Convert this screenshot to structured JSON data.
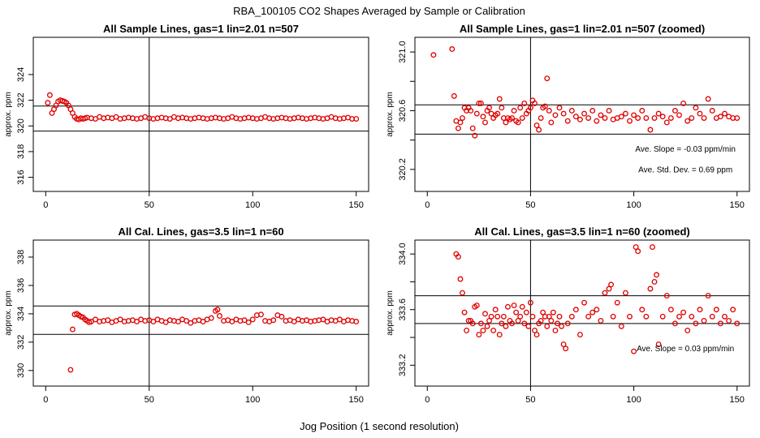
{
  "figure": {
    "title": "RBA_100105  CO2 Shapes Averaged by Sample or Calibration",
    "xlabel": "Jog Position (1 second resolution)"
  },
  "colors": {
    "points": "#e00000",
    "axes": "#000000",
    "background": "#ffffff"
  },
  "chart_data": [
    {
      "type": "scatter",
      "title": "All Sample Lines, gas=1 lin=2.01 n=507",
      "xlabel": "",
      "ylabel": "approx. ppm",
      "xlim": [
        -6,
        156
      ],
      "ylim": [
        314.9,
        326.9
      ],
      "xticks": [
        0,
        50,
        100,
        150
      ],
      "yticks": [
        316,
        318,
        320,
        322,
        324
      ],
      "xtick_labels": [
        "0",
        "50",
        "100",
        "150"
      ],
      "ytick_labels": [
        "316",
        "318",
        "320",
        "322",
        "324"
      ],
      "hlines": [
        321.55,
        319.6
      ],
      "vlines": [
        50
      ],
      "annotations": [],
      "x": [
        1,
        2,
        3,
        4,
        5,
        6,
        7,
        8,
        9,
        10,
        11,
        12,
        13,
        14,
        15,
        16,
        17,
        18,
        19,
        20,
        22,
        24,
        26,
        28,
        30,
        32,
        34,
        36,
        38,
        40,
        42,
        44,
        46,
        48,
        50,
        52,
        54,
        56,
        58,
        60,
        62,
        64,
        66,
        68,
        70,
        72,
        74,
        76,
        78,
        80,
        82,
        84,
        86,
        88,
        90,
        92,
        94,
        96,
        98,
        100,
        102,
        104,
        106,
        108,
        110,
        112,
        114,
        116,
        118,
        120,
        122,
        124,
        126,
        128,
        130,
        132,
        134,
        136,
        138,
        140,
        142,
        144,
        146,
        148,
        150
      ],
      "y": [
        321.8,
        322.4,
        321.0,
        321.3,
        321.6,
        321.9,
        322.0,
        321.95,
        321.9,
        321.8,
        321.6,
        321.3,
        321.0,
        320.7,
        320.55,
        320.5,
        320.6,
        320.55,
        320.6,
        320.65,
        320.6,
        320.55,
        320.7,
        320.6,
        320.65,
        320.6,
        320.7,
        320.55,
        320.6,
        320.65,
        320.6,
        320.55,
        320.6,
        320.7,
        320.6,
        320.55,
        320.6,
        320.65,
        320.6,
        320.55,
        320.7,
        320.6,
        320.65,
        320.6,
        320.55,
        320.6,
        320.65,
        320.6,
        320.55,
        320.6,
        320.65,
        320.6,
        320.55,
        320.6,
        320.7,
        320.6,
        320.55,
        320.6,
        320.65,
        320.6,
        320.55,
        320.6,
        320.7,
        320.6,
        320.55,
        320.6,
        320.65,
        320.6,
        320.55,
        320.6,
        320.65,
        320.6,
        320.55,
        320.6,
        320.65,
        320.6,
        320.55,
        320.6,
        320.7,
        320.6,
        320.55,
        320.6,
        320.65,
        320.55,
        320.55
      ]
    },
    {
      "type": "scatter",
      "title": "All Sample Lines, gas=1 lin=2.01 n=507 (zoomed)",
      "xlabel": "",
      "ylabel": "approx. ppm",
      "xlim": [
        -6,
        156
      ],
      "ylim": [
        320.05,
        321.1
      ],
      "xticks": [
        0,
        50,
        100,
        150
      ],
      "yticks": [
        320.2,
        320.4,
        320.6,
        320.8,
        321.0
      ],
      "xtick_labels": [
        "0",
        "50",
        "100",
        "150"
      ],
      "ytick_labels": [
        "320.2",
        "",
        "320.6",
        "",
        "321.0"
      ],
      "hlines": [
        320.64,
        320.44
      ],
      "vlines": [
        50
      ],
      "annotations": [
        "Ave. Slope =  -0.03  ppm/min",
        "Ave. Std. Dev. =  0.69  ppm"
      ],
      "x": [
        3,
        12,
        13,
        14,
        15,
        16,
        17,
        18,
        19,
        20,
        21,
        22,
        23,
        24,
        25,
        26,
        27,
        28,
        29,
        30,
        31,
        32,
        33,
        34,
        35,
        36,
        37,
        38,
        39,
        40,
        41,
        42,
        43,
        44,
        45,
        46,
        47,
        48,
        49,
        50,
        51,
        52,
        53,
        54,
        55,
        56,
        57,
        58,
        59,
        60,
        62,
        64,
        66,
        68,
        70,
        72,
        74,
        76,
        78,
        80,
        82,
        84,
        86,
        88,
        90,
        92,
        94,
        96,
        98,
        100,
        102,
        104,
        106,
        108,
        110,
        112,
        114,
        116,
        118,
        120,
        122,
        124,
        126,
        128,
        130,
        132,
        134,
        136,
        138,
        140,
        142,
        144,
        146,
        148,
        150
      ],
      "y": [
        320.98,
        321.02,
        320.7,
        320.53,
        320.48,
        320.52,
        320.55,
        320.62,
        320.6,
        320.62,
        320.6,
        320.48,
        320.43,
        320.58,
        320.65,
        320.65,
        320.56,
        320.52,
        320.6,
        320.62,
        320.58,
        320.55,
        320.57,
        320.58,
        320.68,
        320.62,
        320.55,
        320.52,
        320.55,
        320.54,
        320.55,
        320.6,
        320.53,
        320.52,
        320.62,
        320.55,
        320.65,
        320.58,
        320.6,
        320.62,
        320.67,
        320.65,
        320.5,
        320.47,
        320.55,
        320.62,
        320.63,
        320.82,
        320.6,
        320.52,
        320.57,
        320.62,
        320.58,
        320.53,
        320.6,
        320.56,
        320.54,
        320.58,
        320.55,
        320.6,
        320.53,
        320.57,
        320.55,
        320.6,
        320.54,
        320.55,
        320.56,
        320.58,
        320.53,
        320.57,
        320.55,
        320.6,
        320.55,
        320.47,
        320.55,
        320.58,
        320.56,
        320.52,
        320.55,
        320.6,
        320.57,
        320.65,
        320.53,
        320.55,
        320.62,
        320.58,
        320.55,
        320.68,
        320.6,
        320.55,
        320.56,
        320.58,
        320.56,
        320.55,
        320.55
      ]
    },
    {
      "type": "scatter",
      "title": "All Cal. Lines, gas=3.5 lin=1 n=60",
      "xlabel": "",
      "ylabel": "approx. ppm",
      "xlim": [
        -6,
        156
      ],
      "ylim": [
        328.9,
        339.2
      ],
      "xticks": [
        0,
        50,
        100,
        150
      ],
      "yticks": [
        330,
        332,
        334,
        336,
        338
      ],
      "xtick_labels": [
        "0",
        "50",
        "100",
        "150"
      ],
      "ytick_labels": [
        "330",
        "332",
        "334",
        "336",
        "338"
      ],
      "hlines": [
        334.55,
        332.55
      ],
      "vlines": [
        50
      ],
      "annotations": [],
      "x": [
        12,
        13,
        14,
        15,
        16,
        17,
        18,
        19,
        20,
        21,
        22,
        24,
        26,
        28,
        30,
        32,
        34,
        36,
        38,
        40,
        42,
        44,
        46,
        48,
        50,
        52,
        54,
        56,
        58,
        60,
        62,
        64,
        66,
        68,
        70,
        72,
        74,
        76,
        78,
        80,
        82,
        83,
        84,
        86,
        88,
        90,
        92,
        94,
        96,
        98,
        100,
        102,
        104,
        106,
        108,
        110,
        112,
        114,
        116,
        118,
        120,
        122,
        124,
        126,
        128,
        130,
        132,
        134,
        136,
        138,
        140,
        142,
        144,
        146,
        148,
        150
      ],
      "y": [
        330.05,
        332.9,
        333.95,
        334.0,
        333.9,
        333.8,
        333.75,
        333.6,
        333.5,
        333.4,
        333.45,
        333.6,
        333.45,
        333.5,
        333.55,
        333.4,
        333.5,
        333.6,
        333.45,
        333.5,
        333.55,
        333.45,
        333.6,
        333.5,
        333.55,
        333.45,
        333.6,
        333.5,
        333.4,
        333.55,
        333.5,
        333.45,
        333.6,
        333.5,
        333.35,
        333.5,
        333.55,
        333.45,
        333.6,
        333.7,
        334.2,
        334.3,
        333.85,
        333.5,
        333.55,
        333.45,
        333.6,
        333.5,
        333.55,
        333.4,
        333.6,
        333.9,
        333.95,
        333.5,
        333.45,
        333.55,
        333.9,
        333.8,
        333.5,
        333.55,
        333.45,
        333.6,
        333.5,
        333.55,
        333.45,
        333.5,
        333.55,
        333.6,
        333.45,
        333.55,
        333.5,
        333.6,
        333.45,
        333.55,
        333.5,
        333.45
      ]
    },
    {
      "type": "scatter",
      "title": "All Cal. Lines, gas=3.5 lin=1 n=60 (zoomed)",
      "xlabel": "",
      "ylabel": "approx. ppm",
      "xlim": [
        -6,
        156
      ],
      "ylim": [
        333.05,
        334.1
      ],
      "xticks": [
        0,
        50,
        100,
        150
      ],
      "yticks": [
        333.2,
        333.4,
        333.6,
        333.8,
        334.0
      ],
      "xtick_labels": [
        "0",
        "50",
        "100",
        "150"
      ],
      "ytick_labels": [
        "333.2",
        "",
        "333.6",
        "",
        "334.0"
      ],
      "hlines": [
        333.7,
        333.5
      ],
      "vlines": [
        50
      ],
      "annotations": [
        "Ave. Slope =  0.03  ppm/min"
      ],
      "x": [
        14,
        15,
        16,
        17,
        18,
        19,
        20,
        21,
        22,
        23,
        24,
        25,
        26,
        27,
        28,
        29,
        30,
        31,
        32,
        33,
        34,
        35,
        36,
        37,
        38,
        39,
        40,
        41,
        42,
        43,
        44,
        45,
        46,
        47,
        48,
        49,
        50,
        51,
        52,
        53,
        54,
        55,
        56,
        57,
        58,
        59,
        60,
        61,
        62,
        63,
        64,
        65,
        66,
        67,
        68,
        70,
        72,
        74,
        76,
        78,
        80,
        82,
        84,
        86,
        88,
        89,
        90,
        92,
        94,
        96,
        98,
        100,
        101,
        102,
        104,
        106,
        108,
        109,
        110,
        111,
        112,
        114,
        116,
        118,
        120,
        122,
        124,
        126,
        128,
        130,
        132,
        134,
        136,
        138,
        140,
        142,
        144,
        146,
        148,
        150
      ],
      "y": [
        334.0,
        333.98,
        333.82,
        333.72,
        333.58,
        333.45,
        333.52,
        333.52,
        333.5,
        333.62,
        333.63,
        333.42,
        333.5,
        333.45,
        333.57,
        333.48,
        333.52,
        333.55,
        333.45,
        333.6,
        333.55,
        333.42,
        333.5,
        333.55,
        333.48,
        333.62,
        333.52,
        333.5,
        333.63,
        333.58,
        333.52,
        333.55,
        333.62,
        333.5,
        333.58,
        333.48,
        333.65,
        333.55,
        333.45,
        333.42,
        333.5,
        333.52,
        333.58,
        333.55,
        333.48,
        333.55,
        333.52,
        333.58,
        333.45,
        333.5,
        333.55,
        333.48,
        333.35,
        333.32,
        333.5,
        333.55,
        333.6,
        333.42,
        333.65,
        333.55,
        333.58,
        333.6,
        333.52,
        333.72,
        333.75,
        333.78,
        333.55,
        333.65,
        333.48,
        333.72,
        333.55,
        333.3,
        334.05,
        334.02,
        333.6,
        333.55,
        333.75,
        334.05,
        333.8,
        333.85,
        333.35,
        333.55,
        333.7,
        333.6,
        333.5,
        333.55,
        333.58,
        333.45,
        333.55,
        333.5,
        333.6,
        333.52,
        333.7,
        333.55,
        333.6,
        333.5,
        333.55,
        333.52,
        333.6,
        333.5
      ]
    }
  ]
}
